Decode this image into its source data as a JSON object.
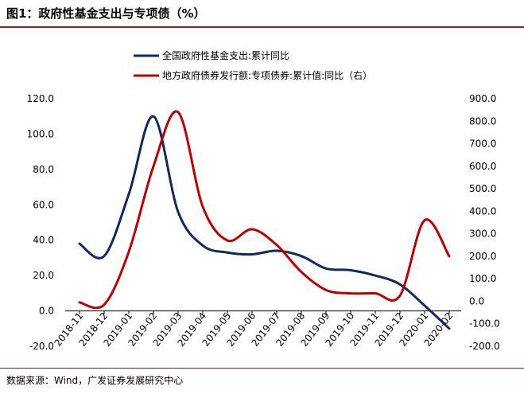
{
  "title": "图1：政府性基金支出与专项债（%）",
  "source": "数据来源：Wind，广发证券发展研究中心",
  "colors": {
    "series1": "#0e2a5e",
    "series2": "#c00000",
    "accent_rule": "#9b1c1c"
  },
  "chart_data": {
    "type": "line",
    "title": "图1：政府性基金支出与专项债（%）",
    "x": [
      "2018-11",
      "2018-12",
      "2019-01",
      "2019-02",
      "2019-03",
      "2019-04",
      "2019-05",
      "2019-06",
      "2019-07",
      "2019-08",
      "2019-09",
      "2019-10",
      "2019-11",
      "2019-12",
      "2020-01",
      "2020-02"
    ],
    "left_axis": {
      "ylim": [
        -20,
        120
      ],
      "ticks": [
        "120.0",
        "100.0",
        "80.0",
        "60.0",
        "40.0",
        "20.0",
        "0.0",
        "-20.0"
      ]
    },
    "right_axis": {
      "ylim": [
        -200,
        900
      ],
      "ticks": [
        "900.0",
        "800.0",
        "700.0",
        "600.0",
        "500.0",
        "400.0",
        "300.0",
        "200.0",
        "100.0",
        "0.0",
        "-100.0",
        "-200.0"
      ]
    },
    "series": [
      {
        "name": "全国政府性基金支出:累计同比",
        "axis": "left",
        "values": [
          38,
          31,
          66,
          110,
          56,
          37,
          33,
          32,
          34,
          31,
          24,
          23,
          20,
          15,
          3,
          -10
        ]
      },
      {
        "name": "地方政府债券发行额:专项债券:累计值:同比（右）",
        "axis": "right",
        "values": [
          -5,
          -15,
          220,
          600,
          840,
          420,
          270,
          320,
          250,
          130,
          50,
          35,
          35,
          25,
          360,
          200
        ]
      }
    ],
    "legend_position": "top-center",
    "grid": false
  }
}
